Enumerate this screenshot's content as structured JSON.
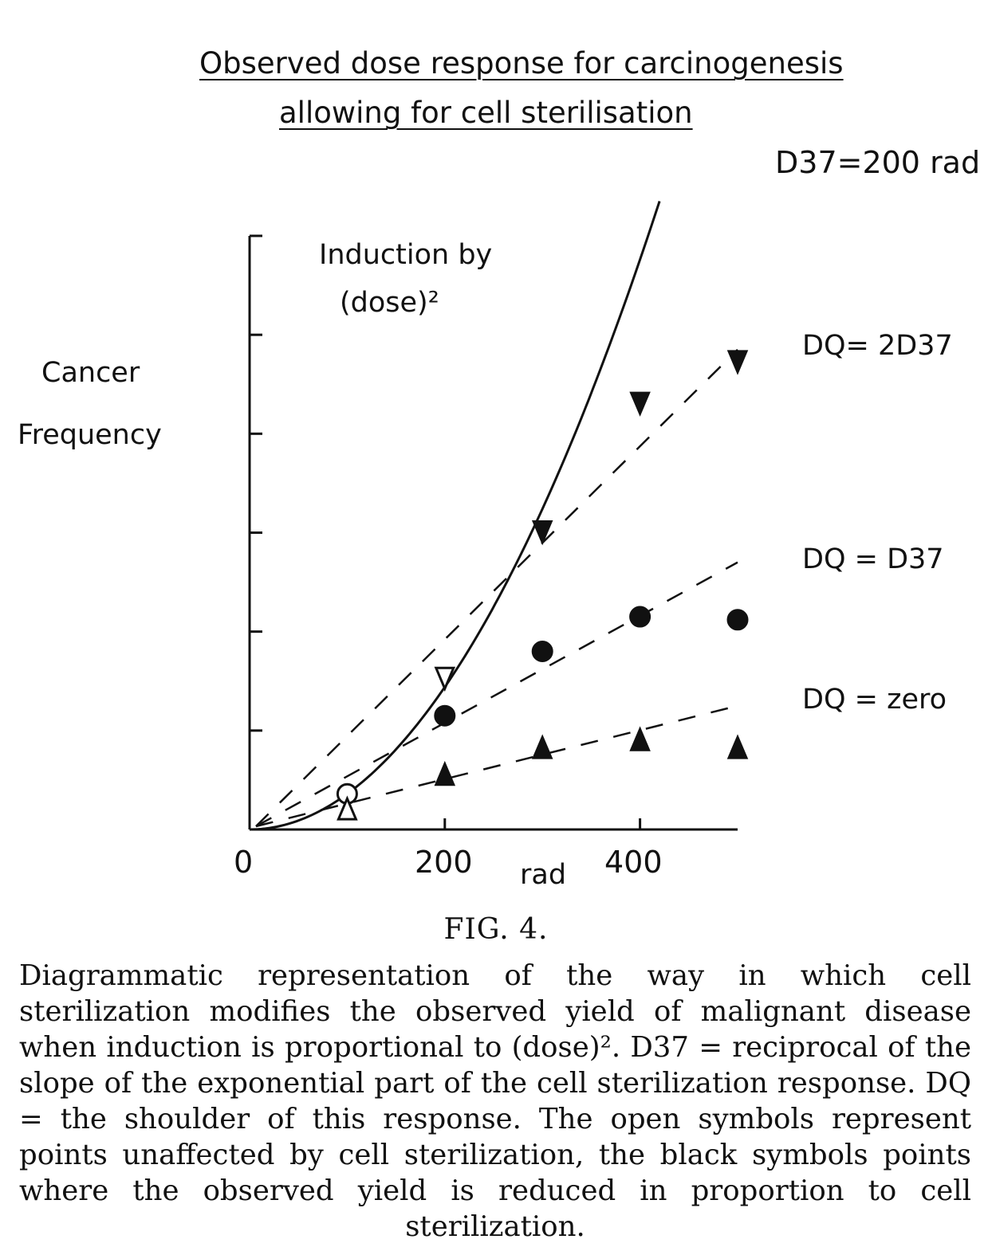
{
  "chart_data": {
    "type": "line",
    "title": "Observed dose response for carcinogenesis",
    "subtitle": "allowing for cell sterilisation",
    "header_note": "D37=200 rad",
    "xlabel": "rad",
    "ylabel_line1": "Cancer",
    "ylabel_line2": "Frequency",
    "x_ticks": [
      "0",
      "200",
      "400"
    ],
    "xlim": [
      0,
      500
    ],
    "ylim": [
      0,
      6
    ],
    "grid": false,
    "annotation_line1": "Induction by",
    "annotation_line2": "(dose)²",
    "curve": {
      "label": "Induction by (dose)²",
      "x": [
        0,
        50,
        100,
        150,
        200,
        250,
        300,
        350,
        400,
        420
      ],
      "y": [
        0,
        0.09,
        0.36,
        0.81,
        1.44,
        2.25,
        3.24,
        4.41,
        5.76,
        6.35
      ]
    },
    "series": [
      {
        "name": "DQ= 2D37",
        "marker": "triangle-down",
        "line_x": [
          0,
          500
        ],
        "line_y": [
          0,
          4.85
        ],
        "points": [
          {
            "x": 200,
            "y": 1.52,
            "open": true
          },
          {
            "x": 300,
            "y": 3.0,
            "open": false
          },
          {
            "x": 400,
            "y": 4.3,
            "open": false
          },
          {
            "x": 500,
            "y": 4.72,
            "open": false
          }
        ]
      },
      {
        "name": "DQ = D37",
        "marker": "circle",
        "line_x": [
          0,
          500
        ],
        "line_y": [
          0,
          2.7
        ],
        "points": [
          {
            "x": 100,
            "y": 0.36,
            "open": true
          },
          {
            "x": 200,
            "y": 1.15,
            "open": false
          },
          {
            "x": 300,
            "y": 1.8,
            "open": false
          },
          {
            "x": 400,
            "y": 2.15,
            "open": false
          },
          {
            "x": 500,
            "y": 2.12,
            "open": false
          }
        ]
      },
      {
        "name": "DQ = zero",
        "marker": "triangle-up",
        "line_x": [
          0,
          500
        ],
        "line_y": [
          0,
          1.25
        ],
        "points": [
          {
            "x": 100,
            "y": 0.2,
            "open": true
          },
          {
            "x": 200,
            "y": 0.55,
            "open": false
          },
          {
            "x": 300,
            "y": 0.82,
            "open": false
          },
          {
            "x": 400,
            "y": 0.9,
            "open": false
          },
          {
            "x": 500,
            "y": 0.82,
            "open": false
          }
        ]
      }
    ]
  },
  "figure_label": "FIG. 4.",
  "caption": "Diagrammatic representation of the way in which cell sterilization modifies the observed yield of malignant disease when induction is proportional to (dose)². D37 = reciprocal of the slope of the exponential part of the cell sterilization response. DQ = the shoulder of this response. The open symbols represent points unaffected by cell sterilization, the black symbols points where the observed yield is reduced in proportion to cell sterilization."
}
